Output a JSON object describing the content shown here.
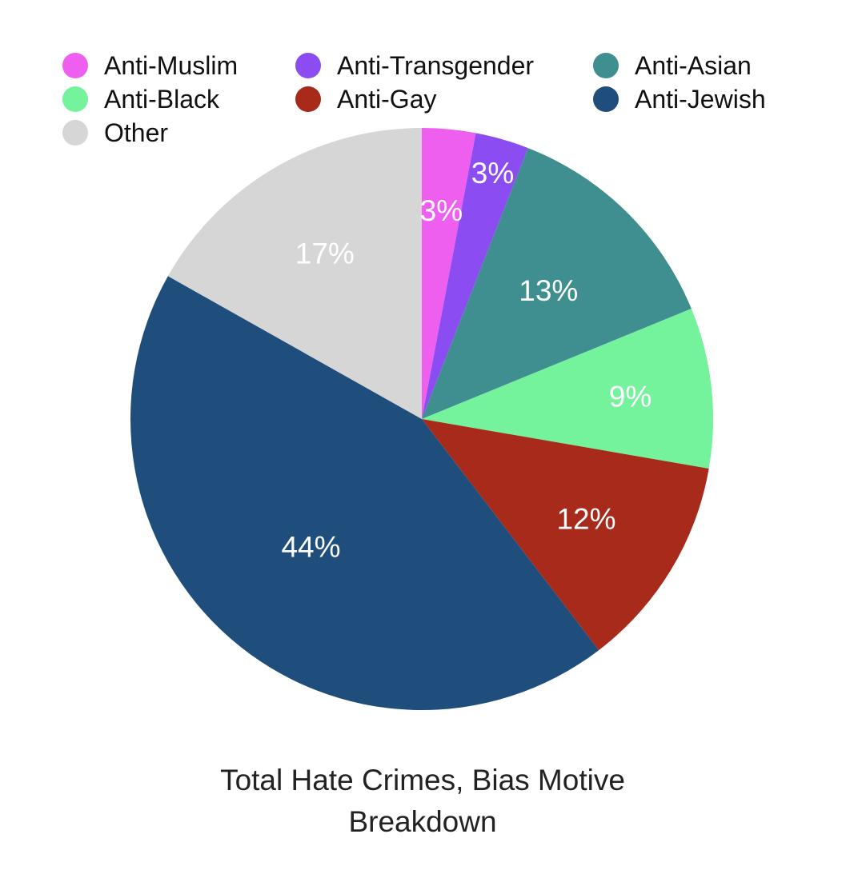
{
  "chart_data": {
    "type": "pie",
    "title_lines": [
      "Total Hate Crimes, Bias Motive",
      "Breakdown"
    ],
    "legend_position": "top",
    "slices": [
      {
        "name": "Anti-Muslim",
        "value": 3,
        "label": "3%",
        "color": "#ee5ff0"
      },
      {
        "name": "Anti-Transgender",
        "value": 3,
        "label": "3%",
        "color": "#8b4cf2"
      },
      {
        "name": "Anti-Asian",
        "value": 13,
        "label": "13%",
        "color": "#3f8e90"
      },
      {
        "name": "Anti-Black",
        "value": 9,
        "label": "9%",
        "color": "#74f39c"
      },
      {
        "name": "Anti-Gay",
        "value": 12,
        "label": "12%",
        "color": "#a82a1b"
      },
      {
        "name": "Anti-Jewish",
        "value": 44,
        "label": "44%",
        "color": "#1f4e7c"
      },
      {
        "name": "Other",
        "value": 17,
        "label": "17%",
        "color": "#d6d6d6"
      }
    ]
  }
}
